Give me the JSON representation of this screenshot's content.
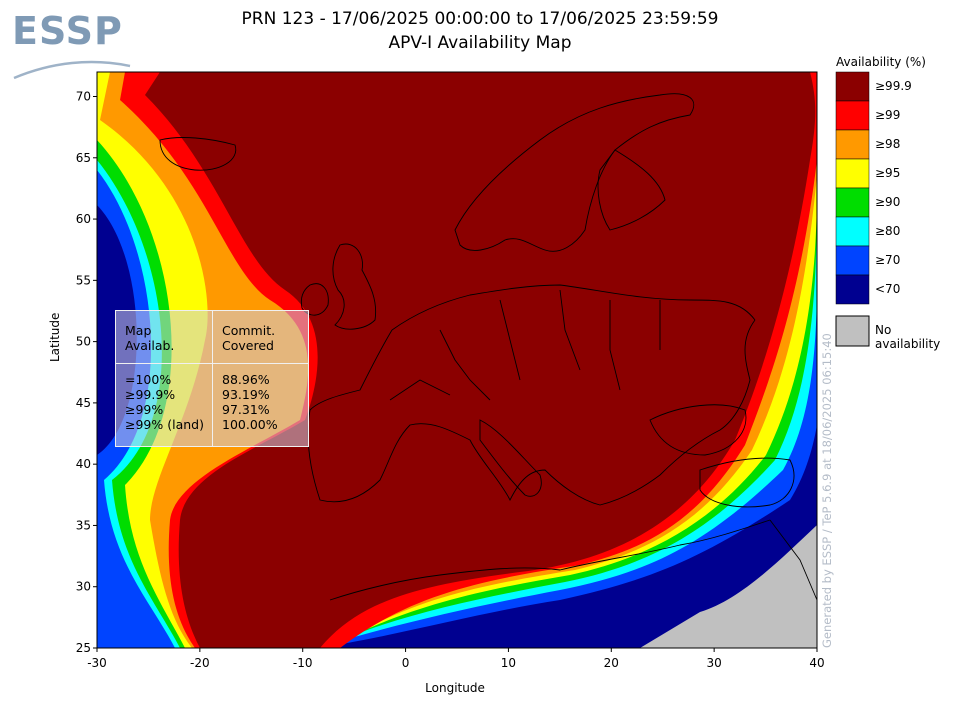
{
  "logo": {
    "text": "ESSP"
  },
  "title": {
    "line1": "PRN 123 - 17/06/2025 00:00:00 to 17/06/2025 23:59:59",
    "line2": "APV-I Availability Map"
  },
  "axes": {
    "xlabel": "Longitude",
    "ylabel": "Latitude",
    "xticks": [
      "-30",
      "-20",
      "-10",
      "0",
      "10",
      "20",
      "30",
      "40"
    ],
    "yticks": [
      "70",
      "65",
      "60",
      "55",
      "50",
      "45",
      "40",
      "35",
      "30",
      "25"
    ],
    "xlim": [
      -30,
      40
    ],
    "ylim": [
      25,
      72
    ]
  },
  "legend": {
    "title": "Availability (%)",
    "items": [
      {
        "label": "≥99.9",
        "color": "#8b0000"
      },
      {
        "label": "≥99",
        "color": "#ff0000"
      },
      {
        "label": "≥98",
        "color": "#ff9900"
      },
      {
        "label": "≥95",
        "color": "#ffff00"
      },
      {
        "label": "≥90",
        "color": "#00dd00"
      },
      {
        "label": "≥80",
        "color": "#00ffff"
      },
      {
        "label": "≥70",
        "color": "#0044ff"
      },
      {
        "label": "<70",
        "color": "#000090"
      }
    ],
    "no_availability": {
      "label": "No availability",
      "color": "#c0c0c0"
    }
  },
  "stats": {
    "header_col1": [
      "Map",
      "Availab."
    ],
    "header_col2": [
      "Commit.",
      "Covered"
    ],
    "rows": [
      {
        "level": "=100%",
        "covered": "88.96%"
      },
      {
        "level": "≥99.9%",
        "covered": "93.19%"
      },
      {
        "level": "≥99%",
        "covered": "97.31%"
      },
      {
        "level": "≥99% (land)",
        "covered": "100.00%"
      }
    ]
  },
  "side_text": "Generated by ESSP / TeP 5.6.9 at 18/06/2025 06:15:40"
}
